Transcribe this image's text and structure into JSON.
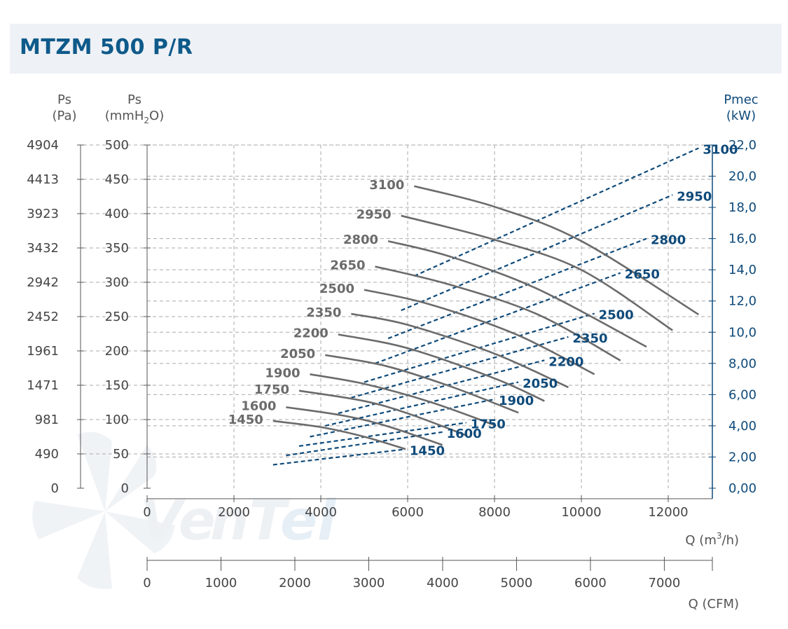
{
  "title": "MTZM 500 P/R",
  "colors": {
    "ps_curve": "#6b6b6b",
    "power_curve": "#0e4a7a",
    "grid": "#aaaaaa",
    "title_bg": "#eef1f5",
    "title_text": "#0e5a8a"
  },
  "chart_data": {
    "type": "line",
    "title": "MTZM 500 P/R",
    "axes": {
      "left_pa": {
        "label_top": "Ps",
        "label_bottom": "(Pa)",
        "ticks": [
          "4904",
          "4413",
          "3923",
          "3432",
          "2942",
          "2452",
          "1961",
          "1471",
          "981",
          "490",
          "0"
        ]
      },
      "left_mmh2o": {
        "label_top": "Ps",
        "label_bottom_main": "(mmH",
        "label_bottom_sub": "2",
        "label_bottom_end": "O)",
        "ticks": [
          500,
          450,
          400,
          350,
          300,
          250,
          200,
          150,
          100,
          50,
          0
        ],
        "range": [
          0,
          500
        ]
      },
      "right_kw": {
        "label_top": "Pmec",
        "label_bottom": "(kW)",
        "ticks": [
          "22,0",
          "20,0",
          "18,0",
          "16,0",
          "14,0",
          "12,0",
          "10,0",
          "8,00",
          "6,00",
          "4,00",
          "2,00",
          "0,00"
        ],
        "range": [
          0,
          22
        ]
      },
      "x_m3h": {
        "label_main": "Q (m",
        "label_sup": "3",
        "label_end": "/h)",
        "ticks": [
          0,
          2000,
          4000,
          6000,
          8000,
          10000,
          12000
        ],
        "range": [
          0,
          13000
        ]
      },
      "x_cfm": {
        "label": "Q (CFM)",
        "ticks": [
          0,
          1000,
          2000,
          3000,
          4000,
          5000,
          6000,
          7000
        ],
        "range": [
          0,
          7650
        ]
      }
    },
    "grid": true,
    "series_pressure": [
      {
        "name": "3100",
        "q": [
          6150,
          8000,
          10000,
          12700
        ],
        "ps": [
          440,
          410,
          360,
          253
        ]
      },
      {
        "name": "2950",
        "q": [
          5850,
          8000,
          10000,
          12100
        ],
        "ps": [
          397,
          362,
          318,
          230
        ]
      },
      {
        "name": "2800",
        "q": [
          5550,
          7000,
          9000,
          11500
        ],
        "ps": [
          360,
          337,
          290,
          206
        ]
      },
      {
        "name": "2650",
        "q": [
          5250,
          7000,
          9000,
          10900
        ],
        "ps": [
          323,
          296,
          253,
          186
        ]
      },
      {
        "name": "2500",
        "q": [
          5000,
          6500,
          8500,
          10300
        ],
        "ps": [
          289,
          268,
          224,
          166
        ]
      },
      {
        "name": "2350",
        "q": [
          4700,
          6000,
          8000,
          9700
        ],
        "ps": [
          254,
          238,
          196,
          147
        ]
      },
      {
        "name": "2200",
        "q": [
          4400,
          6000,
          8000,
          9150
        ],
        "ps": [
          224,
          204,
          160,
          127
        ]
      },
      {
        "name": "2050",
        "q": [
          4100,
          5500,
          7000,
          8550
        ],
        "ps": [
          194,
          178,
          148,
          110
        ]
      },
      {
        "name": "1900",
        "q": [
          3750,
          5000,
          6500,
          8000
        ],
        "ps": [
          166,
          152,
          126,
          92
        ]
      },
      {
        "name": "1750",
        "q": [
          3500,
          5000,
          6000,
          7350
        ],
        "ps": [
          142,
          127,
          109,
          77
        ]
      },
      {
        "name": "1600",
        "q": [
          3200,
          4500,
          5500,
          6800
        ],
        "ps": [
          118,
          106,
          91,
          63
        ]
      },
      {
        "name": "1450",
        "q": [
          2900,
          4000,
          5000,
          5950
        ],
        "ps": [
          98,
          89,
          75,
          57
        ]
      }
    ],
    "series_power": [
      {
        "name": "3100",
        "q": [
          6150,
          12700
        ],
        "kw": [
          13.6,
          21.8
        ]
      },
      {
        "name": "2950",
        "q": [
          5850,
          12100
        ],
        "kw": [
          11.4,
          18.8
        ]
      },
      {
        "name": "2800",
        "q": [
          5550,
          11500
        ],
        "kw": [
          9.6,
          16.0
        ]
      },
      {
        "name": "2650",
        "q": [
          5250,
          10900
        ],
        "kw": [
          8.0,
          13.8
        ]
      },
      {
        "name": "2500",
        "q": [
          5000,
          10300
        ],
        "kw": [
          6.8,
          11.2
        ]
      },
      {
        "name": "2350",
        "q": [
          4700,
          9700
        ],
        "kw": [
          5.8,
          9.7
        ]
      },
      {
        "name": "2200",
        "q": [
          4400,
          9150
        ],
        "kw": [
          4.8,
          8.2
        ]
      },
      {
        "name": "2050",
        "q": [
          4100,
          8550
        ],
        "kw": [
          4.0,
          6.8
        ]
      },
      {
        "name": "1900",
        "q": [
          3750,
          8000
        ],
        "kw": [
          3.3,
          5.7
        ]
      },
      {
        "name": "1750",
        "q": [
          3500,
          7350
        ],
        "kw": [
          2.7,
          4.2
        ]
      },
      {
        "name": "1600",
        "q": [
          3200,
          6800
        ],
        "kw": [
          2.1,
          3.6
        ]
      },
      {
        "name": "1450",
        "q": [
          2900,
          5950
        ],
        "kw": [
          1.5,
          2.5
        ]
      }
    ],
    "watermark": "VenTel"
  }
}
